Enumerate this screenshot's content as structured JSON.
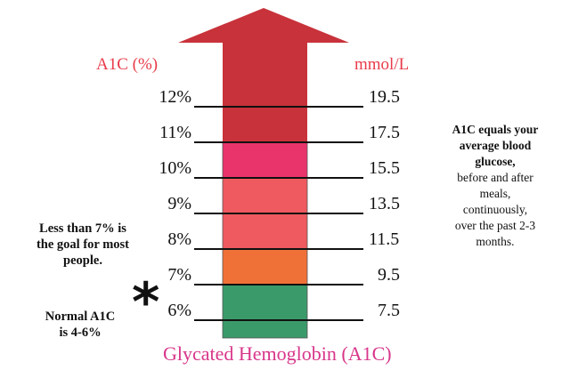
{
  "header": {
    "left_label": "A1C (%)",
    "right_label": "mmol/L"
  },
  "levels": [
    {
      "pct": "12%",
      "mmol": "19.5"
    },
    {
      "pct": "11%",
      "mmol": "17.5"
    },
    {
      "pct": "10%",
      "mmol": "15.5"
    },
    {
      "pct": "9%",
      "mmol": "13.5"
    },
    {
      "pct": "8%",
      "mmol": "11.5"
    },
    {
      "pct": "7%",
      "mmol": "9.5"
    },
    {
      "pct": "6%",
      "mmol": "7.5"
    }
  ],
  "bands": [
    {
      "from": 10,
      "to": 11,
      "color": "#e8346a"
    },
    {
      "from": 8,
      "to": 10,
      "color": "#ee5a5f"
    },
    {
      "from": 7,
      "to": 8,
      "color": "#f07138"
    },
    {
      "from": 5.5,
      "to": 7,
      "color": "#3a9a6a"
    }
  ],
  "arrow_color": "#c8323a",
  "asterisk": "*",
  "notes": {
    "goal": [
      "Less than 7% is",
      "the goal for most",
      "people."
    ],
    "normal": [
      "Normal A1C",
      "is 4-6%"
    ],
    "right": {
      "bold_lines": [
        "A1C equals your",
        "average blood",
        "glucose,"
      ],
      "lines": [
        "before and after",
        "meals,",
        "continuously,",
        "over the past 2-3",
        "months."
      ]
    }
  },
  "caption": "Glycated Hemoglobin (A1C)"
}
